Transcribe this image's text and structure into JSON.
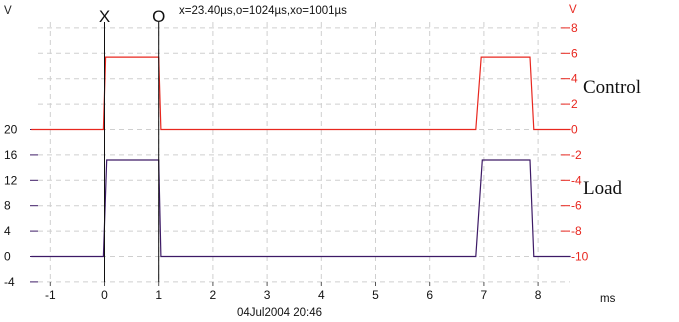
{
  "chart_data": {
    "type": "line",
    "readout": "x=23.40µs,o=1024µs,xo=1001µs",
    "date": "04Jul2004  20:46",
    "x_unit": "ms",
    "left_unit": "V",
    "right_unit": "V",
    "cursors": [
      {
        "label": "X",
        "x": 0
      },
      {
        "label": "O",
        "x": 1.0
      }
    ],
    "xlim": [
      -1.35,
      8.6
    ],
    "x_ticks": [
      -1,
      0,
      1,
      2,
      3,
      4,
      5,
      6,
      7,
      8
    ],
    "left_ylim": [
      -4,
      20
    ],
    "left_ticks": [
      20,
      16,
      12,
      8,
      4,
      0,
      -4
    ],
    "right_ticks": [
      8,
      6,
      4,
      2,
      0,
      -2,
      -4,
      -6,
      -8,
      -10
    ],
    "series": [
      {
        "name": "Control",
        "color": "#e8271f",
        "axis": "right",
        "x": [
          -1.35,
          -0.02,
          0.02,
          1.0,
          1.04,
          6.85,
          6.95,
          7.85,
          7.92,
          8.6
        ],
        "y": [
          0,
          0,
          5.7,
          5.7,
          0,
          0,
          5.7,
          5.7,
          0,
          0
        ]
      },
      {
        "name": "Load",
        "color": "#3d1a66",
        "axis": "left",
        "x": [
          -1.35,
          -0.02,
          0.04,
          1.0,
          1.04,
          6.85,
          6.97,
          7.85,
          7.92,
          8.6
        ],
        "y": [
          0,
          0,
          15.2,
          15.2,
          0,
          0,
          15.2,
          15.2,
          0,
          0
        ]
      }
    ]
  }
}
